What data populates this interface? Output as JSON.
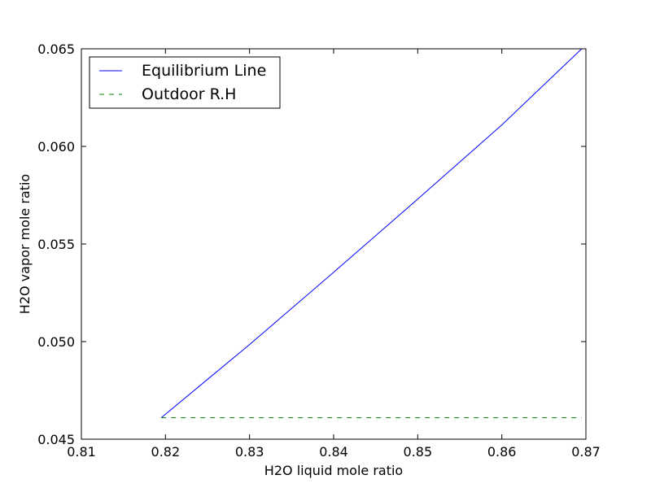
{
  "chart_data": {
    "type": "line",
    "title": "",
    "xlabel": "H2O liquid mole ratio",
    "ylabel": "H2O vapor mole ratio",
    "xlim": [
      0.81,
      0.87
    ],
    "ylim": [
      0.045,
      0.065
    ],
    "xticks": [
      "0.81",
      "0.82",
      "0.83",
      "0.84",
      "0.85",
      "0.86",
      "0.87"
    ],
    "yticks": [
      "0.045",
      "0.050",
      "0.055",
      "0.060",
      "0.065"
    ],
    "grid": false,
    "legend_position": "top-left",
    "series": [
      {
        "name": "Equilibrium Line",
        "color": "#0000ff",
        "style": "solid",
        "x": [
          0.8195,
          0.83,
          0.84,
          0.85,
          0.86,
          0.8695
        ],
        "y": [
          0.0461,
          0.04985,
          0.05355,
          0.0573,
          0.0611,
          0.065
        ]
      },
      {
        "name": "Outdoor R.H",
        "color": "#008000",
        "style": "dashed",
        "x": [
          0.8195,
          0.8695
        ],
        "y": [
          0.0461,
          0.0461
        ]
      }
    ]
  }
}
